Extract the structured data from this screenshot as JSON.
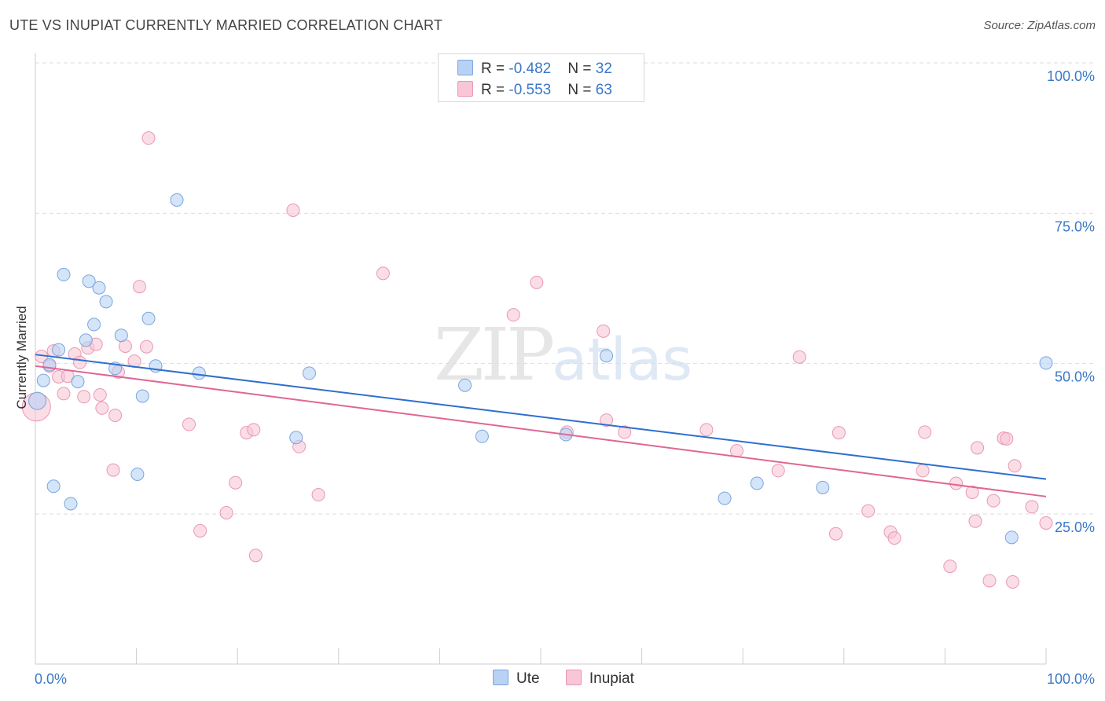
{
  "title": "UTE VS INUPIAT CURRENTLY MARRIED CORRELATION CHART",
  "source": "Source: ZipAtlas.com",
  "watermark": {
    "zip": "ZIP",
    "atlas": "atlas"
  },
  "colors": {
    "ute_fill": "#b8d2f5",
    "ute_stroke": "#7aa6dc",
    "ute_line": "#2f6fcf",
    "inupiat_fill": "#f8c6d6",
    "inupiat_stroke": "#e898b3",
    "inupiat_line": "#e06694",
    "grid": "#dddddd",
    "tick_label": "#3a78c8"
  },
  "legend_top": [
    {
      "r_label": "R = ",
      "r_value": "-0.482",
      "n_label": "N = ",
      "n_value": "32"
    },
    {
      "r_label": "R = ",
      "r_value": "-0.553",
      "n_label": "N = ",
      "n_value": "63"
    }
  ],
  "legend_bottom": [
    "Ute",
    "Inupiat"
  ],
  "chart_data": {
    "type": "scatter",
    "title": "UTE VS INUPIAT CURRENTLY MARRIED CORRELATION CHART",
    "xlabel": "",
    "ylabel": "Currently Married",
    "xlim": [
      0,
      100
    ],
    "ylim": [
      0,
      105
    ],
    "x_tick_labels": [
      "0.0%",
      "100.0%"
    ],
    "y_ticks": [
      25,
      50,
      75,
      100
    ],
    "y_tick_labels": [
      "25.0%",
      "50.0%",
      "75.0%",
      "100.0%"
    ],
    "grid": "horizontal dashed",
    "legend": "top-center",
    "series": [
      {
        "name": "Ute",
        "trend": {
          "x": [
            0,
            100
          ],
          "y": [
            51.5,
            30.8
          ]
        },
        "points": [
          {
            "x": 0.2,
            "y": 43.8
          },
          {
            "x": 0.8,
            "y": 47.2
          },
          {
            "x": 1.4,
            "y": 49.8
          },
          {
            "x": 1.8,
            "y": 29.6
          },
          {
            "x": 2.3,
            "y": 52.3
          },
          {
            "x": 2.8,
            "y": 64.8
          },
          {
            "x": 3.5,
            "y": 26.7
          },
          {
            "x": 4.2,
            "y": 47.0
          },
          {
            "x": 5.0,
            "y": 53.9
          },
          {
            "x": 5.3,
            "y": 63.7
          },
          {
            "x": 5.8,
            "y": 56.5
          },
          {
            "x": 6.3,
            "y": 62.6
          },
          {
            "x": 7.0,
            "y": 60.3
          },
          {
            "x": 7.9,
            "y": 49.2
          },
          {
            "x": 8.5,
            "y": 54.7
          },
          {
            "x": 10.1,
            "y": 31.6
          },
          {
            "x": 10.6,
            "y": 44.6
          },
          {
            "x": 11.2,
            "y": 57.5
          },
          {
            "x": 11.9,
            "y": 49.6
          },
          {
            "x": 14.0,
            "y": 77.2
          },
          {
            "x": 16.2,
            "y": 48.4
          },
          {
            "x": 25.8,
            "y": 37.7
          },
          {
            "x": 27.1,
            "y": 48.4
          },
          {
            "x": 42.5,
            "y": 46.4
          },
          {
            "x": 44.2,
            "y": 37.9
          },
          {
            "x": 52.5,
            "y": 38.2
          },
          {
            "x": 56.5,
            "y": 51.3
          },
          {
            "x": 68.2,
            "y": 27.6
          },
          {
            "x": 71.4,
            "y": 30.1
          },
          {
            "x": 77.9,
            "y": 29.4
          },
          {
            "x": 96.6,
            "y": 21.1
          },
          {
            "x": 100.0,
            "y": 50.1
          }
        ]
      },
      {
        "name": "Inupiat",
        "trend": {
          "x": [
            0,
            100
          ],
          "y": [
            49.6,
            27.9
          ]
        },
        "points": [
          {
            "x": 0.1,
            "y": 42.8
          },
          {
            "x": 0.6,
            "y": 51.2
          },
          {
            "x": 1.4,
            "y": 49.6
          },
          {
            "x": 1.8,
            "y": 52.1
          },
          {
            "x": 2.3,
            "y": 47.8
          },
          {
            "x": 2.8,
            "y": 45.0
          },
          {
            "x": 3.2,
            "y": 47.9
          },
          {
            "x": 3.9,
            "y": 51.6
          },
          {
            "x": 4.4,
            "y": 50.2
          },
          {
            "x": 4.8,
            "y": 44.5
          },
          {
            "x": 5.2,
            "y": 52.6
          },
          {
            "x": 6.0,
            "y": 53.2
          },
          {
            "x": 6.4,
            "y": 44.8
          },
          {
            "x": 6.6,
            "y": 42.6
          },
          {
            "x": 7.7,
            "y": 32.3
          },
          {
            "x": 7.9,
            "y": 41.4
          },
          {
            "x": 8.2,
            "y": 48.6
          },
          {
            "x": 8.9,
            "y": 52.9
          },
          {
            "x": 9.8,
            "y": 50.4
          },
          {
            "x": 10.3,
            "y": 62.8
          },
          {
            "x": 11.0,
            "y": 52.8
          },
          {
            "x": 11.2,
            "y": 87.5
          },
          {
            "x": 15.2,
            "y": 39.9
          },
          {
            "x": 16.3,
            "y": 22.2
          },
          {
            "x": 18.9,
            "y": 25.2
          },
          {
            "x": 19.8,
            "y": 30.2
          },
          {
            "x": 20.9,
            "y": 38.5
          },
          {
            "x": 21.6,
            "y": 39.0
          },
          {
            "x": 21.8,
            "y": 18.1
          },
          {
            "x": 25.5,
            "y": 75.5
          },
          {
            "x": 26.1,
            "y": 36.2
          },
          {
            "x": 28.0,
            "y": 28.2
          },
          {
            "x": 34.4,
            "y": 65.0
          },
          {
            "x": 47.3,
            "y": 58.1
          },
          {
            "x": 49.6,
            "y": 63.5
          },
          {
            "x": 52.6,
            "y": 38.6
          },
          {
            "x": 56.2,
            "y": 55.4
          },
          {
            "x": 56.5,
            "y": 40.6
          },
          {
            "x": 58.3,
            "y": 38.6
          },
          {
            "x": 66.4,
            "y": 39.0
          },
          {
            "x": 69.4,
            "y": 35.5
          },
          {
            "x": 73.5,
            "y": 32.2
          },
          {
            "x": 75.6,
            "y": 51.1
          },
          {
            "x": 79.2,
            "y": 21.7
          },
          {
            "x": 79.5,
            "y": 38.5
          },
          {
            "x": 82.4,
            "y": 25.5
          },
          {
            "x": 84.6,
            "y": 22.0
          },
          {
            "x": 85.0,
            "y": 21.0
          },
          {
            "x": 88.0,
            "y": 38.6
          },
          {
            "x": 87.8,
            "y": 32.2
          },
          {
            "x": 90.5,
            "y": 16.3
          },
          {
            "x": 91.1,
            "y": 30.1
          },
          {
            "x": 92.7,
            "y": 28.6
          },
          {
            "x": 93.0,
            "y": 23.8
          },
          {
            "x": 93.2,
            "y": 36.0
          },
          {
            "x": 94.4,
            "y": 13.9
          },
          {
            "x": 94.8,
            "y": 27.2
          },
          {
            "x": 95.8,
            "y": 37.6
          },
          {
            "x": 96.1,
            "y": 37.5
          },
          {
            "x": 96.7,
            "y": 13.7
          },
          {
            "x": 96.9,
            "y": 33.0
          },
          {
            "x": 98.6,
            "y": 26.2
          },
          {
            "x": 100.0,
            "y": 23.5
          }
        ]
      }
    ]
  }
}
